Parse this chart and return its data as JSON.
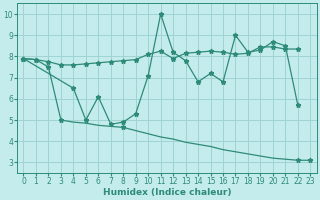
{
  "line1_x": [
    0,
    1,
    2,
    3,
    4,
    5,
    6,
    7,
    8,
    9,
    10,
    11,
    12,
    13,
    14,
    15,
    16,
    17,
    18,
    19,
    20,
    21,
    22
  ],
  "line1_y": [
    7.9,
    7.85,
    7.75,
    7.6,
    7.6,
    7.65,
    7.7,
    7.75,
    7.8,
    7.85,
    8.1,
    8.25,
    7.9,
    8.15,
    8.2,
    8.25,
    8.2,
    8.1,
    8.15,
    8.45,
    8.45,
    8.35,
    8.35
  ],
  "line2_x": [
    0,
    4,
    5,
    6,
    7,
    8,
    9,
    10,
    11,
    12,
    13,
    14,
    15,
    16,
    17,
    18,
    19,
    20,
    21,
    22
  ],
  "line2_y": [
    7.9,
    6.5,
    5.0,
    6.1,
    4.8,
    4.9,
    5.3,
    7.1,
    10.0,
    8.2,
    7.8,
    6.8,
    7.2,
    6.8,
    9.0,
    8.2,
    8.3,
    8.7,
    8.5,
    5.7
  ],
  "line3_x": [
    0,
    1,
    2,
    3,
    8,
    22,
    23
  ],
  "line3_y": [
    7.9,
    7.85,
    7.5,
    5.0,
    4.65,
    3.1,
    3.1
  ],
  "line3_full_x": [
    0,
    1,
    2,
    3,
    4,
    5,
    6,
    7,
    8,
    9,
    10,
    11,
    12,
    13,
    14,
    15,
    16,
    17,
    18,
    19,
    20,
    21,
    22,
    23
  ],
  "line3_full_y": [
    7.9,
    7.85,
    7.5,
    5.0,
    4.9,
    4.85,
    4.75,
    4.7,
    4.65,
    4.5,
    4.35,
    4.2,
    4.1,
    3.95,
    3.85,
    3.75,
    3.6,
    3.5,
    3.4,
    3.3,
    3.2,
    3.15,
    3.1,
    3.1
  ],
  "color": "#2d8b78",
  "bg_color": "#c5ecec",
  "grid_color": "#9fd4d4",
  "xlabel": "Humidex (Indice chaleur)",
  "ylim": [
    2.5,
    10.5
  ],
  "xlim": [
    -0.5,
    23.5
  ],
  "yticks": [
    3,
    4,
    5,
    6,
    7,
    8,
    9,
    10
  ],
  "xticks": [
    0,
    1,
    2,
    3,
    4,
    5,
    6,
    7,
    8,
    9,
    10,
    11,
    12,
    13,
    14,
    15,
    16,
    17,
    18,
    19,
    20,
    21,
    22,
    23
  ],
  "marker": "*",
  "markersize": 3.5,
  "linewidth": 0.9,
  "tick_fontsize": 5.5,
  "xlabel_fontsize": 6.5
}
